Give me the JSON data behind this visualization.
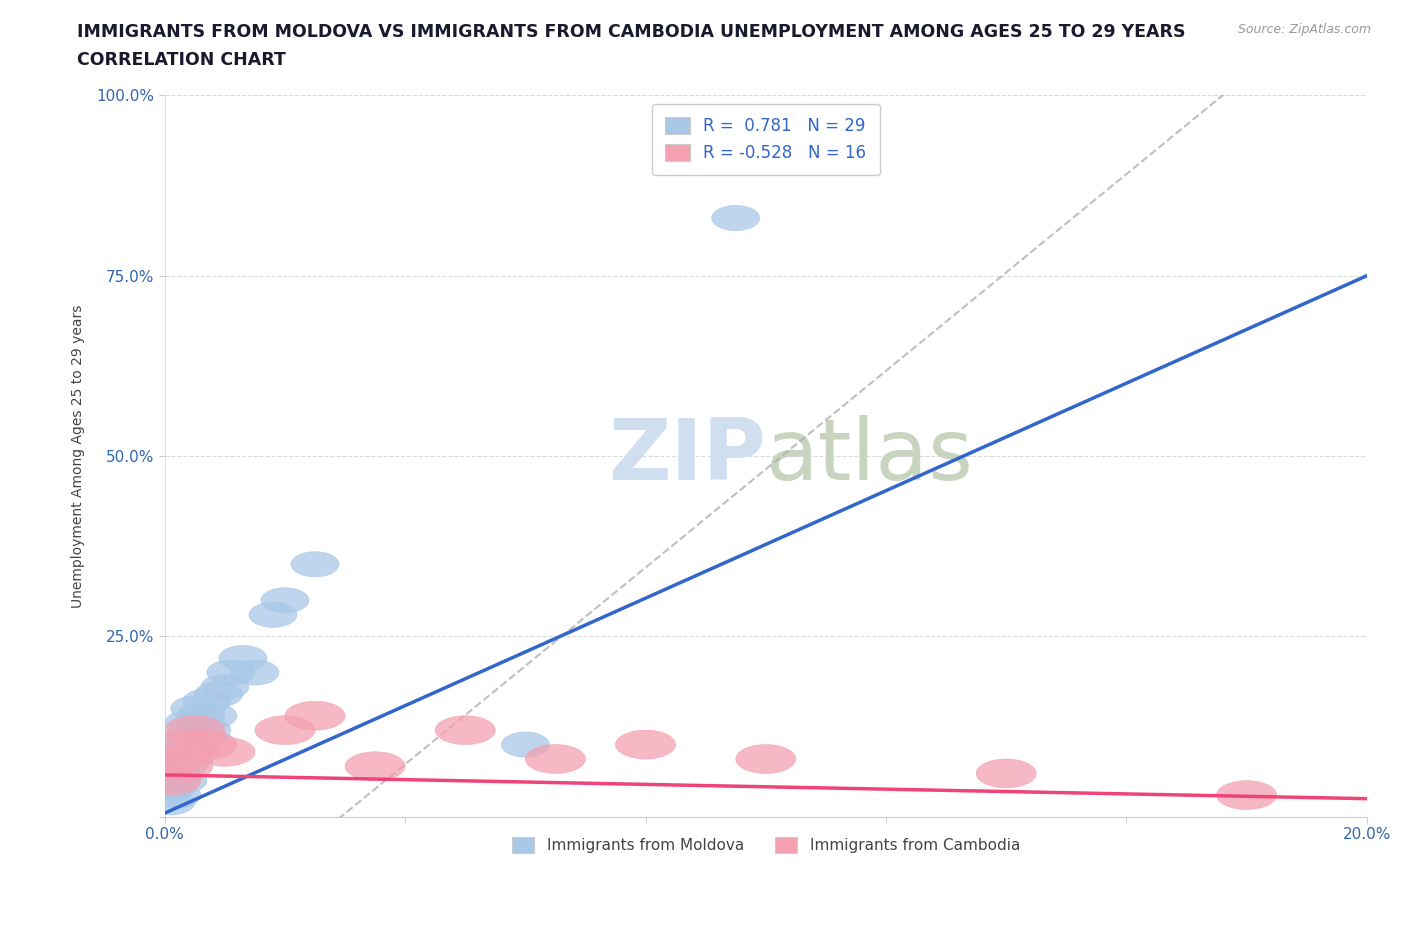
{
  "title_line1": "IMMIGRANTS FROM MOLDOVA VS IMMIGRANTS FROM CAMBODIA UNEMPLOYMENT AMONG AGES 25 TO 29 YEARS",
  "title_line2": "CORRELATION CHART",
  "source_text": "Source: ZipAtlas.com",
  "ylabel": "Unemployment Among Ages 25 to 29 years",
  "xlim": [
    0.0,
    0.2
  ],
  "ylim": [
    0.0,
    1.0
  ],
  "xticks": [
    0.0,
    0.04,
    0.08,
    0.12,
    0.16,
    0.2
  ],
  "xticklabels": [
    "0.0%",
    "",
    "",
    "",
    "",
    "20.0%"
  ],
  "yticks": [
    0.0,
    0.25,
    0.5,
    0.75,
    1.0
  ],
  "yticklabels": [
    "",
    "25.0%",
    "50.0%",
    "75.0%",
    "100.0%"
  ],
  "moldova_color": "#a8c8e8",
  "cambodia_color": "#f4a0b0",
  "moldova_line_color": "#3366cc",
  "cambodia_line_color": "#ee4477",
  "ref_line_color": "#b0b0b0",
  "watermark_color": "#d0dff0",
  "legend_R_moldova": "0.781",
  "legend_N_moldova": "29",
  "legend_R_cambodia": "-0.528",
  "legend_N_cambodia": "16",
  "legend_label_moldova": "Immigrants from Moldova",
  "legend_label_cambodia": "Immigrants from Cambodia",
  "moldova_x": [
    0.001,
    0.001,
    0.002,
    0.002,
    0.002,
    0.003,
    0.003,
    0.003,
    0.004,
    0.004,
    0.004,
    0.005,
    0.005,
    0.005,
    0.006,
    0.006,
    0.007,
    0.007,
    0.008,
    0.009,
    0.01,
    0.011,
    0.013,
    0.015,
    0.018,
    0.02,
    0.025,
    0.095,
    0.06
  ],
  "moldova_y": [
    0.02,
    0.04,
    0.03,
    0.06,
    0.08,
    0.05,
    0.07,
    0.1,
    0.08,
    0.11,
    0.13,
    0.09,
    0.12,
    0.15,
    0.11,
    0.14,
    0.12,
    0.16,
    0.14,
    0.17,
    0.18,
    0.2,
    0.22,
    0.2,
    0.28,
    0.3,
    0.35,
    0.83,
    0.1
  ],
  "cambodia_x": [
    0.001,
    0.002,
    0.003,
    0.004,
    0.005,
    0.007,
    0.01,
    0.02,
    0.025,
    0.035,
    0.05,
    0.065,
    0.08,
    0.1,
    0.14,
    0.18
  ],
  "cambodia_y": [
    0.05,
    0.08,
    0.07,
    0.1,
    0.12,
    0.1,
    0.09,
    0.12,
    0.14,
    0.07,
    0.12,
    0.08,
    0.1,
    0.08,
    0.06,
    0.03
  ],
  "background_color": "#ffffff",
  "title_fontsize": 12.5,
  "subtitle_fontsize": 12.5,
  "axis_label_fontsize": 10,
  "tick_fontsize": 11
}
